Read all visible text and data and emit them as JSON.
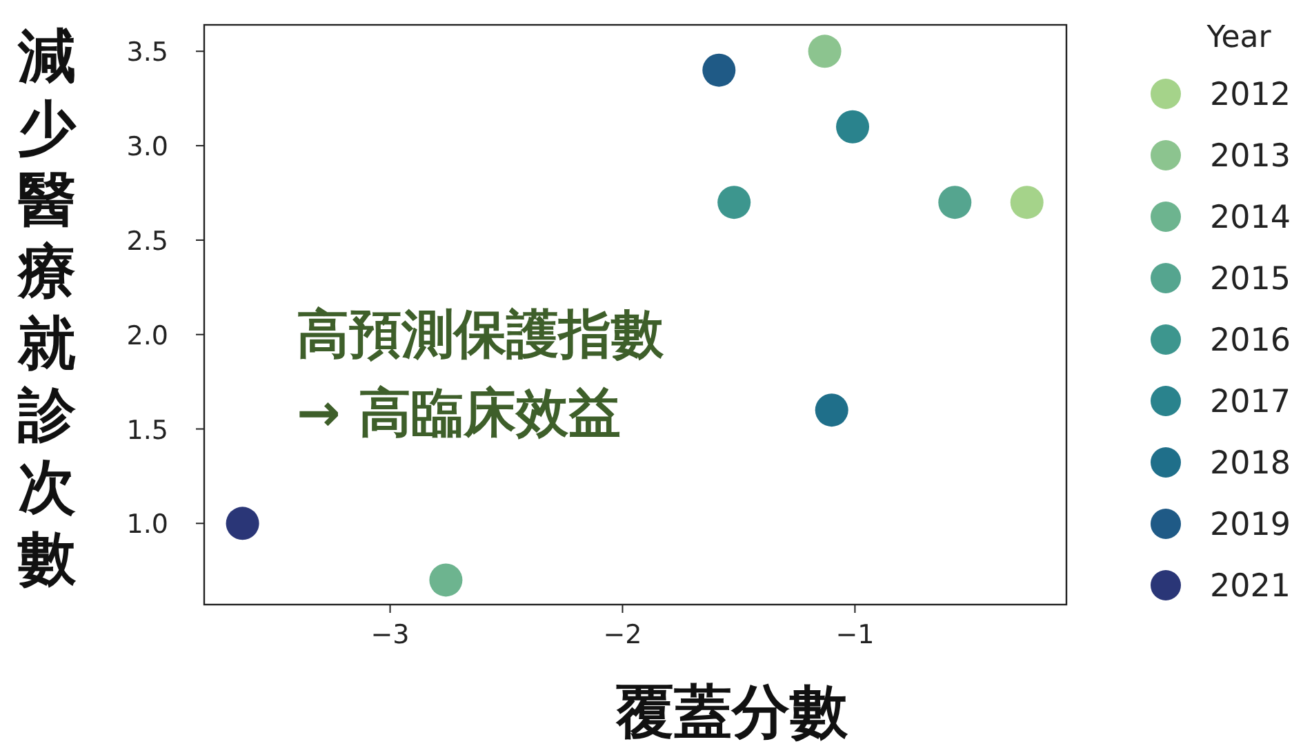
{
  "chart_data": {
    "type": "scatter",
    "xlabel": "覆蓋分數",
    "ylabel": "減少醫療就診次數",
    "legend_title": "Year",
    "xlim": [
      -3.8,
      -0.09
    ],
    "xticks": [
      {
        "value": -3,
        "label": "−3"
      },
      {
        "value": -2,
        "label": "−2"
      },
      {
        "value": -1,
        "label": "−1"
      }
    ],
    "ylim": [
      0.57,
      3.64
    ],
    "yticks": [
      {
        "value": 1,
        "label": "1.0"
      },
      {
        "value": 1.5,
        "label": "1.5"
      },
      {
        "value": 2,
        "label": "2.0"
      },
      {
        "value": 2.5,
        "label": "2.5"
      },
      {
        "value": 3,
        "label": "3.0"
      },
      {
        "value": 3.5,
        "label": "3.5"
      }
    ],
    "grid": false,
    "legend": "right",
    "marker": "circle",
    "annotations": [
      "高預測保護指數",
      "→ 高臨床效益"
    ],
    "series": [
      {
        "name": "2012",
        "color": "#a5d38a",
        "x": [
          -0.26
        ],
        "values": [
          2.7
        ]
      },
      {
        "name": "2013",
        "color": "#8cc48f",
        "x": [
          -1.13
        ],
        "values": [
          3.5
        ]
      },
      {
        "name": "2014",
        "color": "#6db48f",
        "x": [
          -2.76
        ],
        "values": [
          0.7
        ]
      },
      {
        "name": "2015",
        "color": "#55a58f",
        "x": [
          -0.57
        ],
        "values": [
          2.7
        ]
      },
      {
        "name": "2016",
        "color": "#3d968e",
        "x": [
          -1.52
        ],
        "values": [
          2.7
        ]
      },
      {
        "name": "2017",
        "color": "#2a838d",
        "x": [
          -1.01
        ],
        "values": [
          3.1
        ]
      },
      {
        "name": "2018",
        "color": "#1f6f8a",
        "x": [
          -1.1
        ],
        "values": [
          1.6
        ]
      },
      {
        "name": "2019",
        "color": "#1f5a86",
        "x": [
          -1.585
        ],
        "values": [
          3.4
        ]
      },
      {
        "name": "2021",
        "color": "#2a3677",
        "x": [
          -3.635
        ],
        "values": [
          1.0
        ]
      }
    ]
  }
}
